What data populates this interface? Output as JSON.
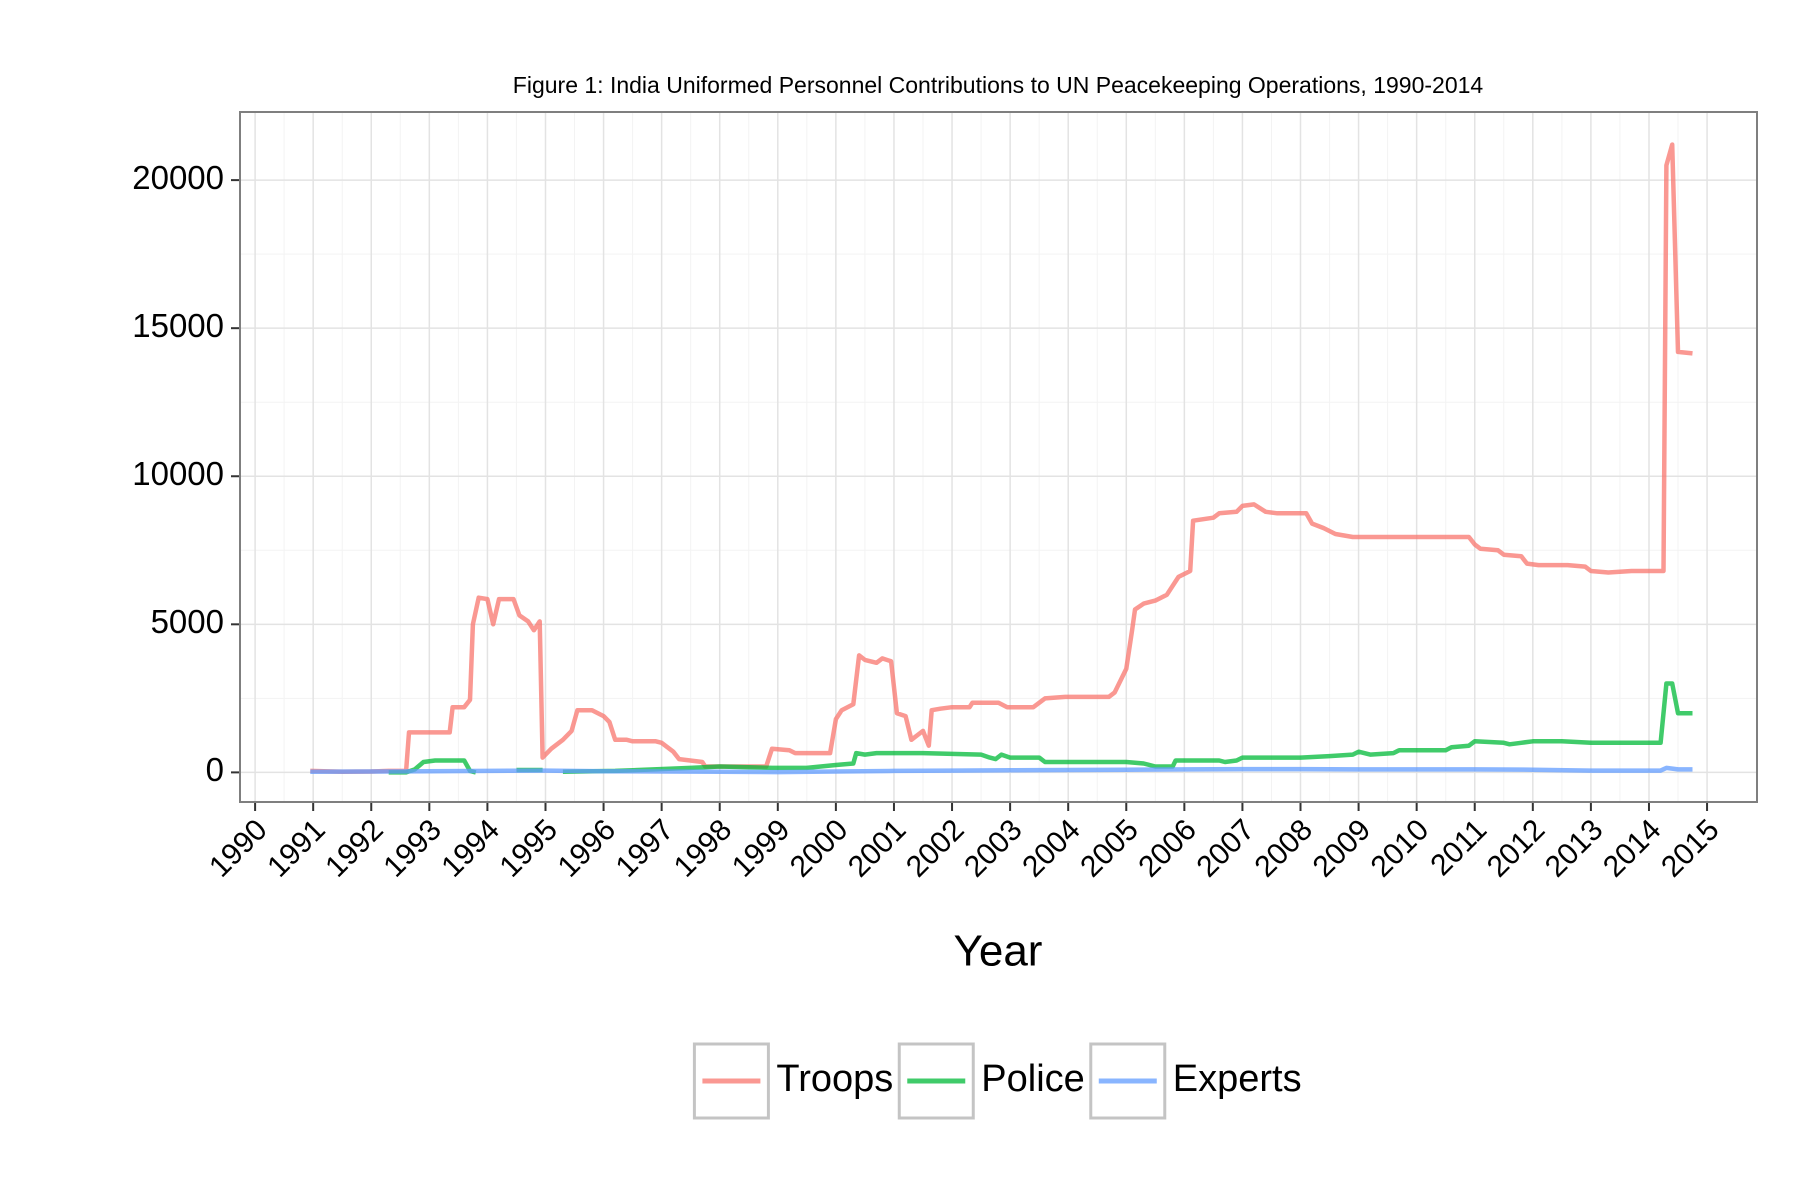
{
  "chart_data": {
    "type": "line",
    "title": "Figure 1: India Uniformed Personnel Contributions to UN Peacekeeping Operations, 1990-2014",
    "x_label": "Year",
    "xlim": [
      1989.74,
      2015.86
    ],
    "xticks": [
      1990,
      1991,
      1992,
      1993,
      1994,
      1995,
      1996,
      1997,
      1998,
      1999,
      2000,
      2001,
      2002,
      2003,
      2004,
      2005,
      2006,
      2007,
      2008,
      2009,
      2010,
      2011,
      2012,
      2013,
      2014,
      2015
    ],
    "ylim": [
      -1000,
      22300
    ],
    "yticks": [
      0,
      5000,
      10000,
      15000,
      20000
    ],
    "grid": true,
    "legend": "bottom",
    "series": [
      {
        "name": "Troops",
        "color": "#F8766D",
        "x": [
          1990.95,
          1991.5,
          1992.0,
          1992.3,
          1992.6,
          1992.65,
          1993.0,
          1993.35,
          1993.4,
          1993.6,
          1993.7,
          1993.75,
          1993.85,
          1994.0,
          1994.1,
          1994.2,
          1994.45,
          1994.55,
          1994.7,
          1994.8,
          1994.9,
          1994.95,
          1995.1,
          1995.3,
          1995.45,
          1995.55,
          1995.8,
          1996.0,
          1996.1,
          1996.2,
          1996.4,
          1996.5,
          1996.9,
          1997.0,
          1997.2,
          1997.3,
          1997.7,
          1997.75,
          1998.5,
          1998.8,
          1998.9,
          1999.2,
          1999.3,
          1999.9,
          2000.0,
          2000.1,
          2000.3,
          2000.4,
          2000.5,
          2000.7,
          2000.8,
          2000.95,
          2001.05,
          2001.2,
          2001.3,
          2001.5,
          2001.6,
          2001.65,
          2001.8,
          2002.0,
          2002.3,
          2002.35,
          2002.8,
          2002.95,
          2003.4,
          2003.6,
          2003.95,
          2004.7,
          2004.8,
          2005.0,
          2005.1,
          2005.15,
          2005.3,
          2005.5,
          2005.7,
          2005.9,
          2006.1,
          2006.15,
          2006.5,
          2006.6,
          2006.9,
          2007.0,
          2007.2,
          2007.4,
          2007.6,
          2008.1,
          2008.2,
          2008.4,
          2008.6,
          2008.9,
          2009.5,
          2010.0,
          2010.9,
          2011.0,
          2011.1,
          2011.4,
          2011.5,
          2011.8,
          2011.9,
          2012.1,
          2012.6,
          2012.9,
          2013.0,
          2013.3,
          2013.7,
          2014.25,
          2014.3,
          2014.4,
          2014.5,
          2014.75
        ],
        "values": [
          50,
          20,
          30,
          50,
          50,
          1350,
          1350,
          1350,
          2200,
          2200,
          2450,
          5000,
          5900,
          5850,
          5000,
          5850,
          5850,
          5300,
          5100,
          4800,
          5100,
          500,
          800,
          1100,
          1400,
          2100,
          2100,
          1900,
          1700,
          1100,
          1100,
          1050,
          1050,
          1000,
          700,
          450,
          350,
          200,
          200,
          200,
          800,
          750,
          650,
          650,
          1800,
          2100,
          2300,
          3950,
          3800,
          3700,
          3850,
          3750,
          2000,
          1900,
          1100,
          1400,
          900,
          2100,
          2150,
          2200,
          2200,
          2350,
          2350,
          2200,
          2200,
          2500,
          2550,
          2550,
          2700,
          3500,
          4800,
          5500,
          5700,
          5800,
          6000,
          6600,
          6800,
          8500,
          8600,
          8750,
          8800,
          9000,
          9050,
          8800,
          8750,
          8750,
          8400,
          8250,
          8050,
          7950,
          7950,
          7950,
          7950,
          7700,
          7550,
          7500,
          7350,
          7300,
          7050,
          7000,
          7000,
          6950,
          6800,
          6750,
          6800,
          6800,
          20500,
          21200,
          14200,
          14150
        ]
      },
      {
        "name": "Police",
        "color": "#00BA38",
        "x": [
          1992.3,
          1992.6,
          1992.75,
          1992.9,
          1993.1,
          1993.3,
          1993.6,
          1993.7,
          1993.8,
          1994.2,
          1994.5,
          1994.95,
          1995.1,
          1995.3,
          1996.2,
          1997.5,
          1998.0,
          1998.9,
          1999.5,
          2000.0,
          2000.3,
          2000.35,
          2000.5,
          2000.7,
          2001.5,
          2002.5,
          2002.65,
          2002.75,
          2002.85,
          2003.0,
          2003.5,
          2003.6,
          2004.5,
          2005.0,
          2005.3,
          2005.5,
          2005.8,
          2005.85,
          2006.6,
          2006.7,
          2006.9,
          2007.0,
          2007.5,
          2008.0,
          2008.5,
          2008.9,
          2009.0,
          2009.2,
          2009.6,
          2009.7,
          2010.5,
          2010.6,
          2010.9,
          2011.0,
          2011.5,
          2011.6,
          2011.8,
          2012.0,
          2012.5,
          2013.0,
          2013.5,
          2014.2,
          2014.3,
          2014.4,
          2014.5,
          2014.75
        ],
        "values": [
          0,
          0,
          100,
          350,
          400,
          400,
          400,
          50,
          0,
          null,
          80,
          80,
          null,
          20,
          50,
          150,
          200,
          150,
          150,
          250,
          300,
          650,
          600,
          650,
          650,
          600,
          500,
          450,
          600,
          500,
          500,
          350,
          350,
          350,
          300,
          200,
          200,
          400,
          400,
          350,
          400,
          500,
          500,
          500,
          550,
          600,
          700,
          600,
          650,
          750,
          750,
          850,
          900,
          1050,
          1000,
          950,
          1000,
          1050,
          1050,
          1000,
          1000,
          1000,
          3000,
          3000,
          2000,
          2000
        ]
      },
      {
        "name": "Experts",
        "color": "#619CFF",
        "x": [
          1990.95,
          1992.0,
          1993.0,
          1994.0,
          1995.0,
          1996.0,
          1997.0,
          1998.0,
          1999.0,
          2000.0,
          2001.0,
          2002.0,
          2003.0,
          2004.0,
          2005.0,
          2006.0,
          2007.0,
          2008.0,
          2009.0,
          2010.0,
          2011.0,
          2012.0,
          2013.0,
          2014.2,
          2014.3,
          2014.5,
          2014.75
        ],
        "values": [
          20,
          30,
          40,
          50,
          60,
          40,
          30,
          20,
          10,
          30,
          50,
          60,
          70,
          80,
          90,
          100,
          110,
          110,
          100,
          100,
          100,
          90,
          60,
          60,
          150,
          100,
          100
        ]
      }
    ]
  }
}
